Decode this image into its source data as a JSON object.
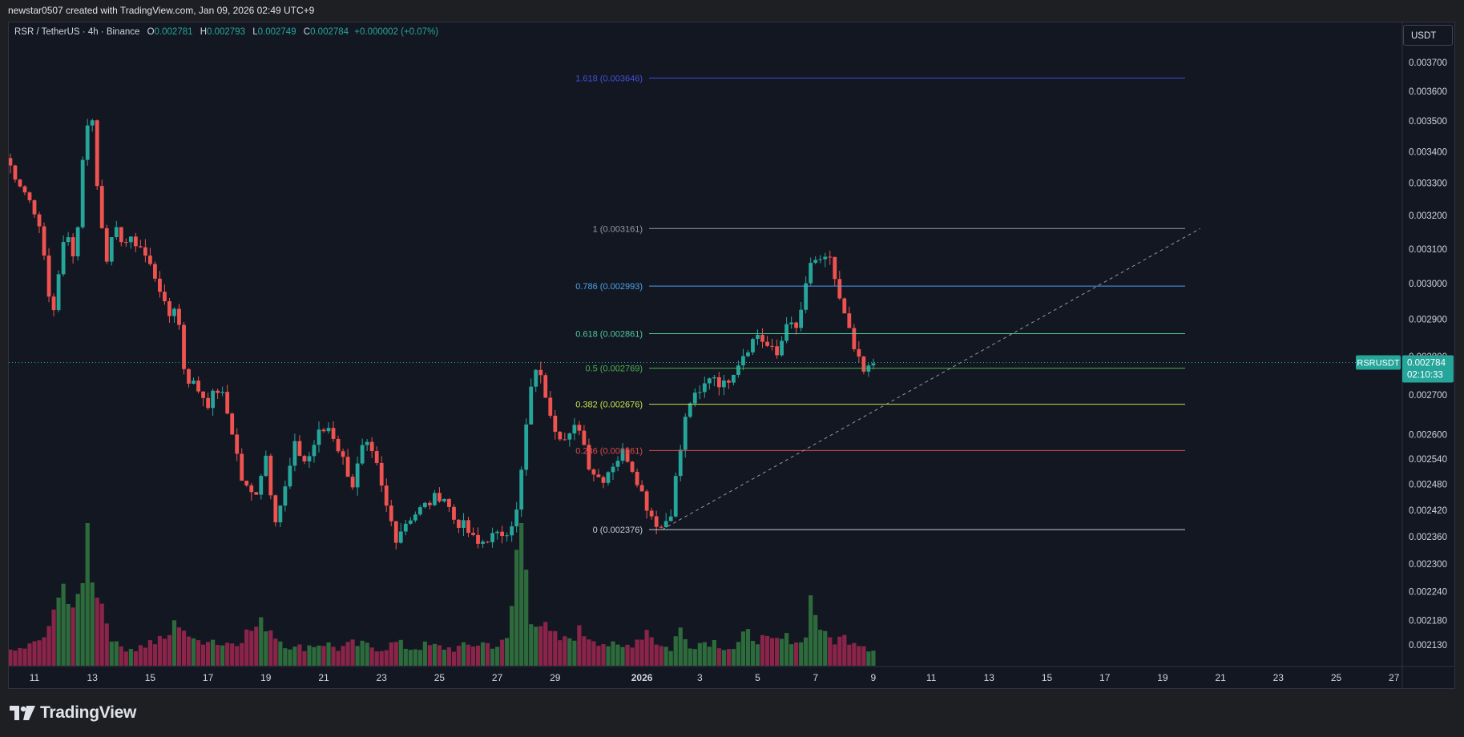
{
  "header": {
    "attribution": "newstar0507 created with TradingView.com, Jan 09, 2026 02:49 UTC+9"
  },
  "legend": {
    "symbol": "RSR / TetherUS · 4h · Binance",
    "open_label": "O",
    "open": "0.002781",
    "high_label": "H",
    "high": "0.002793",
    "low_label": "L",
    "low": "0.002749",
    "close_label": "C",
    "close": "0.002784",
    "change": "+0.000002 (+0.07%)"
  },
  "currency": "USDT",
  "brand": "TradingView",
  "colors": {
    "up": "#26a69a",
    "down": "#ef5350",
    "vol_up": "#2e6b3c",
    "vol_down": "#8a2449",
    "background": "#131722"
  },
  "chart_data": {
    "type": "candlestick",
    "symbol_tag": "RSRUSDT",
    "last_price": "0.002784",
    "countdown": "02:10:33",
    "y_scale": "log",
    "y_ticks": [
      "0.003700",
      "0.003600",
      "0.003500",
      "0.003400",
      "0.003300",
      "0.003200",
      "0.003100",
      "0.003000",
      "0.002900",
      "0.002800",
      "0.002700",
      "0.002600",
      "0.002540",
      "0.002480",
      "0.002420",
      "0.002360",
      "0.002300",
      "0.002240",
      "0.002180",
      "0.002130"
    ],
    "x_labels": [
      {
        "text": "11",
        "day": 11
      },
      {
        "text": "13",
        "day": 13
      },
      {
        "text": "15",
        "day": 15
      },
      {
        "text": "17",
        "day": 17
      },
      {
        "text": "19",
        "day": 19
      },
      {
        "text": "21",
        "day": 21
      },
      {
        "text": "23",
        "day": 23
      },
      {
        "text": "25",
        "day": 25
      },
      {
        "text": "27",
        "day": 27
      },
      {
        "text": "29",
        "day": 29
      },
      {
        "text": "2026",
        "day": 32,
        "bold": true
      },
      {
        "text": "3",
        "day": 34
      },
      {
        "text": "5",
        "day": 36
      },
      {
        "text": "7",
        "day": 38
      },
      {
        "text": "9",
        "day": 40
      },
      {
        "text": "11",
        "day": 42
      },
      {
        "text": "13",
        "day": 44
      },
      {
        "text": "15",
        "day": 46
      },
      {
        "text": "17",
        "day": 48
      },
      {
        "text": "19",
        "day": 50
      },
      {
        "text": "21",
        "day": 52
      },
      {
        "text": "23",
        "day": 54
      },
      {
        "text": "25",
        "day": 56
      },
      {
        "text": "27",
        "day": 58
      }
    ],
    "fib_levels": [
      {
        "label": "1.618 (0.003646)",
        "value": 0.003646,
        "color": "#3f51d8"
      },
      {
        "label": "1 (0.003161)",
        "value": 0.003161,
        "color": "#9598a1"
      },
      {
        "label": "0.786 (0.002993)",
        "value": 0.002993,
        "color": "#4aa3e8"
      },
      {
        "label": "0.618 (0.002861)",
        "value": 0.002861,
        "color": "#4ecb9a"
      },
      {
        "label": "0.5 (0.002769)",
        "value": 0.002769,
        "color": "#4caf50"
      },
      {
        "label": "0.382 (0.002676)",
        "value": 0.002676,
        "color": "#c6e04c"
      },
      {
        "label": "0.236 (0.002561)",
        "value": 0.002561,
        "color": "#d84a4a"
      },
      {
        "label": "0 (0.002376)",
        "value": 0.002376,
        "color": "#c9cbd2"
      }
    ],
    "trend_line": {
      "from_day": 32.7,
      "from_price": 0.002376,
      "to_day": 51.3,
      "to_price": 0.003161
    },
    "price_anchors": [
      [
        10.0,
        0.00338
      ],
      [
        10.5,
        0.0033
      ],
      [
        11.0,
        0.00322
      ],
      [
        11.3,
        0.0031
      ],
      [
        11.6,
        0.0029
      ],
      [
        11.9,
        0.00305
      ],
      [
        12.1,
        0.00318
      ],
      [
        12.4,
        0.00305
      ],
      [
        12.6,
        0.0033
      ],
      [
        12.8,
        0.0035
      ],
      [
        13.0,
        0.0035
      ],
      [
        13.2,
        0.00325
      ],
      [
        13.5,
        0.00308
      ],
      [
        13.8,
        0.00315
      ],
      [
        14.2,
        0.00312
      ],
      [
        14.6,
        0.00312
      ],
      [
        15.0,
        0.00305
      ],
      [
        15.3,
        0.003
      ],
      [
        15.6,
        0.0029
      ],
      [
        15.9,
        0.00295
      ],
      [
        16.2,
        0.00275
      ],
      [
        16.6,
        0.00272
      ],
      [
        17.0,
        0.00268
      ],
      [
        17.4,
        0.00272
      ],
      [
        17.8,
        0.00262
      ],
      [
        18.2,
        0.00248
      ],
      [
        18.6,
        0.00245
      ],
      [
        19.0,
        0.00255
      ],
      [
        19.3,
        0.0024
      ],
      [
        19.6,
        0.00245
      ],
      [
        20.0,
        0.00257
      ],
      [
        20.4,
        0.00253
      ],
      [
        20.8,
        0.0026
      ],
      [
        21.2,
        0.00262
      ],
      [
        21.6,
        0.00255
      ],
      [
        22.0,
        0.00248
      ],
      [
        22.4,
        0.00258
      ],
      [
        22.8,
        0.00253
      ],
      [
        23.1,
        0.00244
      ],
      [
        23.5,
        0.00236
      ],
      [
        23.9,
        0.0024
      ],
      [
        24.3,
        0.00242
      ],
      [
        24.7,
        0.00244
      ],
      [
        25.1,
        0.00246
      ],
      [
        25.5,
        0.0024
      ],
      [
        25.9,
        0.00238
      ],
      [
        26.3,
        0.00234
      ],
      [
        26.7,
        0.00236
      ],
      [
        27.0,
        0.00236
      ],
      [
        27.4,
        0.00238
      ],
      [
        27.7,
        0.00242
      ],
      [
        28.0,
        0.00262
      ],
      [
        28.3,
        0.00278
      ],
      [
        28.6,
        0.00272
      ],
      [
        29.0,
        0.00262
      ],
      [
        29.4,
        0.00258
      ],
      [
        29.8,
        0.00263
      ],
      [
        30.2,
        0.00252
      ],
      [
        30.6,
        0.00249
      ],
      [
        31.0,
        0.00253
      ],
      [
        31.4,
        0.00256
      ],
      [
        31.8,
        0.0025
      ],
      [
        32.1,
        0.00244
      ],
      [
        32.4,
        0.0024
      ],
      [
        32.7,
        0.00238
      ],
      [
        33.0,
        0.00242
      ],
      [
        33.3,
        0.00255
      ],
      [
        33.6,
        0.00268
      ],
      [
        34.0,
        0.0027
      ],
      [
        34.4,
        0.00276
      ],
      [
        34.8,
        0.00272
      ],
      [
        35.2,
        0.00277
      ],
      [
        35.6,
        0.00282
      ],
      [
        36.0,
        0.00286
      ],
      [
        36.4,
        0.00282
      ],
      [
        36.7,
        0.0028
      ],
      [
        37.0,
        0.0029
      ],
      [
        37.3,
        0.00286
      ],
      [
        37.6,
        0.00296
      ],
      [
        37.9,
        0.00308
      ],
      [
        38.2,
        0.00305
      ],
      [
        38.5,
        0.00308
      ],
      [
        38.8,
        0.00296
      ],
      [
        39.1,
        0.00288
      ],
      [
        39.4,
        0.0028
      ],
      [
        39.7,
        0.00275
      ],
      [
        40.0,
        0.002784
      ]
    ],
    "volume_anchors": [
      [
        10.0,
        0.08
      ],
      [
        11.0,
        0.15
      ],
      [
        11.6,
        0.25
      ],
      [
        11.9,
        0.72
      ],
      [
        12.3,
        0.3
      ],
      [
        12.6,
        0.55
      ],
      [
        12.8,
        1.0
      ],
      [
        13.0,
        0.7
      ],
      [
        13.3,
        0.45
      ],
      [
        13.8,
        0.14
      ],
      [
        14.5,
        0.12
      ],
      [
        15.0,
        0.16
      ],
      [
        15.5,
        0.18
      ],
      [
        16.0,
        0.32
      ],
      [
        16.5,
        0.16
      ],
      [
        17.0,
        0.2
      ],
      [
        17.5,
        0.15
      ],
      [
        18.0,
        0.18
      ],
      [
        18.5,
        0.25
      ],
      [
        19.0,
        0.3
      ],
      [
        19.5,
        0.18
      ],
      [
        20.0,
        0.12
      ],
      [
        20.5,
        0.14
      ],
      [
        21.0,
        0.16
      ],
      [
        21.5,
        0.12
      ],
      [
        22.0,
        0.15
      ],
      [
        22.5,
        0.14
      ],
      [
        23.0,
        0.12
      ],
      [
        23.5,
        0.16
      ],
      [
        24.0,
        0.12
      ],
      [
        24.5,
        0.14
      ],
      [
        25.0,
        0.13
      ],
      [
        25.5,
        0.12
      ],
      [
        26.0,
        0.14
      ],
      [
        26.5,
        0.16
      ],
      [
        27.0,
        0.14
      ],
      [
        27.4,
        0.18
      ],
      [
        27.7,
        0.88
      ],
      [
        27.9,
        1.05
      ],
      [
        28.1,
        0.38
      ],
      [
        28.4,
        0.32
      ],
      [
        28.8,
        0.22
      ],
      [
        29.3,
        0.17
      ],
      [
        29.8,
        0.24
      ],
      [
        30.3,
        0.2
      ],
      [
        30.8,
        0.15
      ],
      [
        31.3,
        0.12
      ],
      [
        31.8,
        0.18
      ],
      [
        32.2,
        0.26
      ],
      [
        32.6,
        0.14
      ],
      [
        33.0,
        0.12
      ],
      [
        33.3,
        0.26
      ],
      [
        33.6,
        0.15
      ],
      [
        34.0,
        0.16
      ],
      [
        34.4,
        0.18
      ],
      [
        34.8,
        0.14
      ],
      [
        35.2,
        0.12
      ],
      [
        35.6,
        0.22
      ],
      [
        36.0,
        0.2
      ],
      [
        36.4,
        0.16
      ],
      [
        36.8,
        0.18
      ],
      [
        37.2,
        0.2
      ],
      [
        37.6,
        0.14
      ],
      [
        37.8,
        0.48
      ],
      [
        38.0,
        0.38
      ],
      [
        38.3,
        0.2
      ],
      [
        38.7,
        0.18
      ],
      [
        39.1,
        0.2
      ],
      [
        39.5,
        0.17
      ],
      [
        39.9,
        0.12
      ]
    ]
  }
}
